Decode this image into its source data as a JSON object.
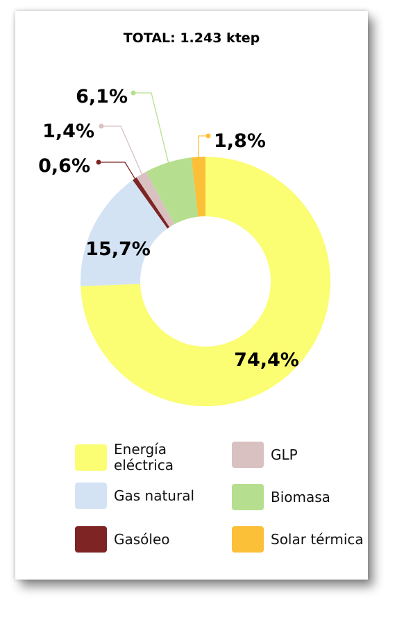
{
  "chart_data": {
    "type": "pie",
    "title": "TOTAL: 1.243 ktep",
    "slices": [
      {
        "name": "Energía eléctrica",
        "value": 74.4,
        "label": "74,4%",
        "color": "#fbfd73"
      },
      {
        "name": "Gas natural",
        "value": 15.7,
        "label": "15,7%",
        "color": "#d3e3f4"
      },
      {
        "name": "Gasóleo",
        "value": 0.6,
        "label": "0,6%",
        "color": "#7e2424"
      },
      {
        "name": "GLP",
        "value": 1.4,
        "label": "1,4%",
        "color": "#d9c1c1"
      },
      {
        "name": "Biomasa",
        "value": 6.1,
        "label": "6,1%",
        "color": "#b5df8e"
      },
      {
        "name": "Solar térmica",
        "value": 1.8,
        "label": "1,8%",
        "color": "#fcbf38"
      }
    ],
    "legend": {
      "placement": "bottom",
      "columns": [
        [
          "Energía eléctrica",
          "Gas natural",
          "Gasóleo"
        ],
        [
          "GLP",
          "Biomasa",
          "Solar térmica"
        ]
      ]
    }
  }
}
